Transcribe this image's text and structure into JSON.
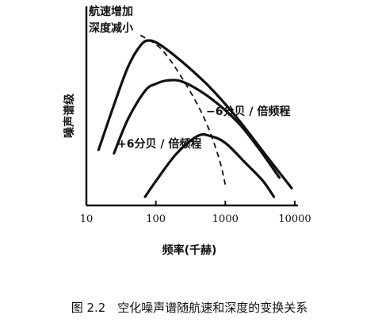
{
  "chart_data": {
    "type": "line",
    "x_scale": "log",
    "xlim": [
      10,
      10000
    ],
    "ylim": [
      0,
      100
    ],
    "x_ticks": [
      {
        "value": 10,
        "label": "10"
      },
      {
        "value": 100,
        "label": "100"
      },
      {
        "value": 1000,
        "label": "1000"
      },
      {
        "value": 10000,
        "label": "10000"
      }
    ],
    "xlabel": "频率(千赫)",
    "ylabel": "噪声谱级",
    "annotations": {
      "corner_line1": "航速增加",
      "corner_line2": "深度减小",
      "slope_upper": "−6分贝 / 倍频程",
      "slope_lower": "+6分贝 / 倍频程"
    },
    "series": [
      {
        "points": [
          [
            15,
            32
          ],
          [
            25,
            58
          ],
          [
            40,
            80
          ],
          [
            60,
            92
          ],
          [
            80,
            95
          ],
          [
            120,
            92
          ],
          [
            250,
            82
          ],
          [
            600,
            68
          ],
          [
            1500,
            50
          ],
          [
            4000,
            28
          ],
          [
            9000,
            10
          ]
        ]
      },
      {
        "points": [
          [
            25,
            30
          ],
          [
            40,
            50
          ],
          [
            70,
            66
          ],
          [
            100,
            70
          ],
          [
            150,
            72
          ],
          [
            250,
            71
          ],
          [
            600,
            62
          ],
          [
            1500,
            48
          ],
          [
            3000,
            33
          ],
          [
            6000,
            16
          ]
        ]
      },
      {
        "points": [
          [
            70,
            5
          ],
          [
            100,
            14
          ],
          [
            200,
            30
          ],
          [
            400,
            40
          ],
          [
            600,
            40
          ],
          [
            1000,
            36
          ],
          [
            2000,
            24
          ],
          [
            3500,
            14
          ],
          [
            5000,
            5
          ]
        ]
      }
    ],
    "peak_trend": [
      [
        60,
        98
      ],
      [
        120,
        90
      ],
      [
        250,
        72
      ],
      [
        500,
        50
      ],
      [
        800,
        28
      ],
      [
        1000,
        12
      ]
    ],
    "grid": false
  },
  "caption": "图 2.2　空化噪声谱随航速和深度的变换关系"
}
